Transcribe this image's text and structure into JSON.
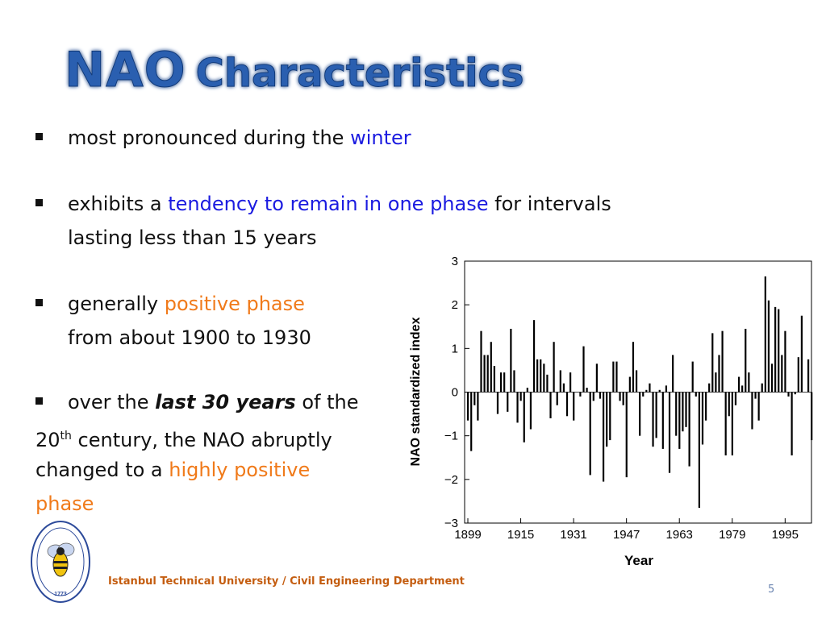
{
  "slide": {
    "title_part1": "NAO",
    "title_part2": "Characteristics",
    "page_number": "5",
    "footer": "Istanbul  Technical University  / Civil Engineering Department"
  },
  "bullets": [
    {
      "segments": [
        {
          "text": "most pronounced during the ",
          "style": "normal"
        },
        {
          "text": "winter",
          "style": "blue"
        }
      ]
    },
    {
      "line1": [
        {
          "text": "exhibits a ",
          "style": "normal"
        },
        {
          "text": "tendency to remain in one phase",
          "style": "blue"
        },
        {
          "text": " for intervals",
          "style": "normal"
        }
      ],
      "line2": "lasting less than 15 years"
    },
    {
      "line1": [
        {
          "text": "generally ",
          "style": "normal"
        },
        {
          "text": "positive phase",
          "style": "orange"
        }
      ],
      "line2": "from about 1900 to 1930"
    },
    {
      "line1": [
        {
          "text": "over the ",
          "style": "normal"
        },
        {
          "text": "last 30 years",
          "style": "bolditalic"
        },
        {
          "text": " of the",
          "style": "normal"
        }
      ],
      "line2_pre": "20",
      "line2_sup": "th",
      "line2_post": " century, the NAO abruptly",
      "line3_pre": "changed to a ",
      "line3_orange": "highly positive",
      "line4_orange": "phase"
    }
  ],
  "logo": {
    "text": "ISTANBUL TEKNİK ÜNİVERSİTESİ",
    "year": "1773"
  },
  "colors": {
    "title": "#2a5fb0",
    "blue": "#1b1be0",
    "orange": "#f07a1a",
    "bars": "#000000"
  },
  "chart_data": {
    "type": "bar",
    "xlabel": "Year",
    "ylabel": "NAO standardized index",
    "ylim": [
      -3,
      3
    ],
    "yticks": [
      3,
      2,
      1,
      0,
      -1,
      -2,
      -3
    ],
    "ytick_labels": [
      "3",
      "2",
      "1",
      "0",
      "−1",
      "−2",
      "−3"
    ],
    "xticks": [
      1899,
      1915,
      1931,
      1947,
      1963,
      1979,
      1995
    ],
    "x_start": 1899,
    "x_end": 2002,
    "values": [
      -0.65,
      -1.35,
      -0.3,
      -0.65,
      1.4,
      0.85,
      0.85,
      1.15,
      0.6,
      -0.5,
      0.45,
      0.45,
      -0.45,
      1.45,
      0.5,
      -0.7,
      -0.2,
      -1.15,
      0.1,
      -0.85,
      1.65,
      0.75,
      0.75,
      0.65,
      0.4,
      -0.6,
      1.15,
      -0.3,
      0.5,
      0.2,
      -0.55,
      0.45,
      -0.65,
      0.0,
      -0.1,
      1.05,
      0.1,
      -1.9,
      -0.2,
      0.65,
      -0.15,
      -2.05,
      -1.25,
      -1.1,
      0.7,
      0.7,
      -0.2,
      -0.3,
      -1.95,
      0.35,
      1.15,
      0.5,
      -1.0,
      -0.1,
      0.05,
      0.2,
      -1.25,
      -1.05,
      0.05,
      -1.3,
      0.15,
      -1.85,
      0.85,
      -1.0,
      -1.3,
      -0.9,
      -0.8,
      -1.7,
      0.7,
      -0.1,
      -2.65,
      -1.2,
      -0.65,
      0.2,
      1.35,
      0.45,
      0.85,
      1.4,
      -1.45,
      -0.55,
      -1.45,
      -0.3,
      0.35,
      0.15,
      1.45,
      0.45,
      -0.85,
      -0.15,
      -0.65,
      0.2,
      2.65,
      2.1,
      0.65,
      1.95,
      1.9,
      0.85,
      1.4,
      -0.1,
      -1.45,
      -0.05,
      0.8,
      1.75,
      0.0,
      0.75,
      -1.1
    ]
  }
}
